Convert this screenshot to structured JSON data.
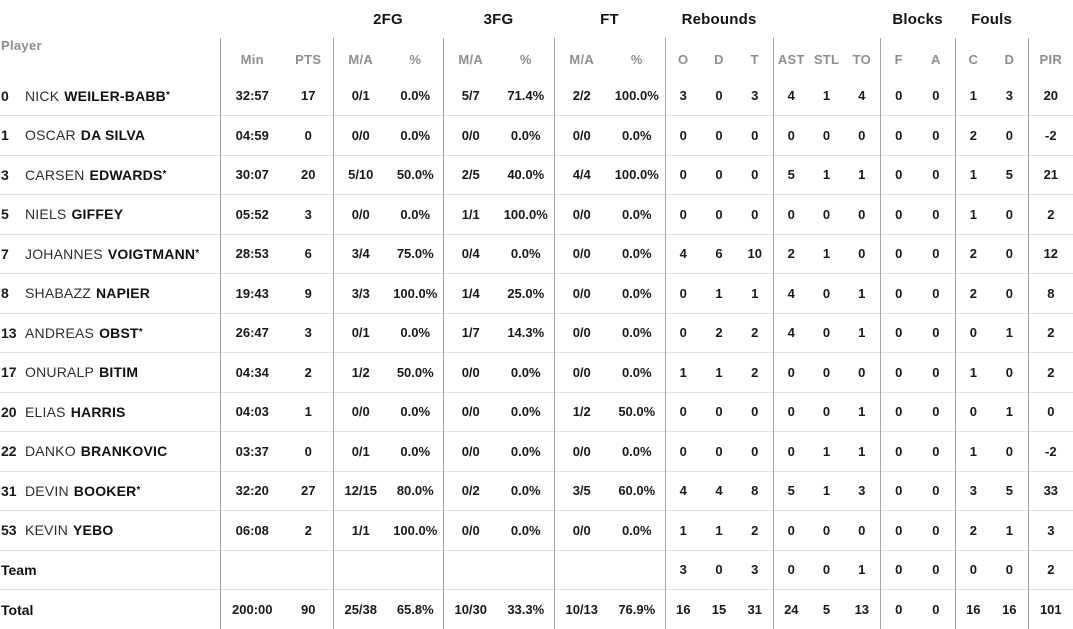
{
  "colors": {
    "background": "#ffffff",
    "text_primary": "#1a1a1a",
    "text_header_muted": "#8e8e8e",
    "vertical_rule": "#a6a6a6",
    "row_divider": "#e2e2e2"
  },
  "table": {
    "groups": {
      "fg2": "2FG",
      "fg3": "3FG",
      "ft": "FT",
      "rebounds": "Rebounds",
      "blocks": "Blocks",
      "fouls": "Fouls"
    },
    "header": {
      "player": "Player",
      "min": "Min",
      "pts": "PTS",
      "ma": "M/A",
      "pct": "%",
      "reb_o": "O",
      "reb_d": "D",
      "reb_t": "T",
      "ast": "AST",
      "stl": "STL",
      "to": "TO",
      "blk_f": "F",
      "blk_a": "A",
      "foul_c": "C",
      "foul_d": "D",
      "pir": "PIR"
    },
    "stat_keys": [
      "min",
      "pts",
      "2fg-ma",
      "2fg-pct",
      "3fg-ma",
      "3fg-pct",
      "ft-ma",
      "ft-pct",
      "reb-o",
      "reb-d",
      "reb-t",
      "ast",
      "stl",
      "to",
      "blk-f",
      "blk-a",
      "fouls-c",
      "fouls-d",
      "pir"
    ],
    "rows": [
      {
        "number": "0",
        "first": "NICK",
        "last": "WEILER-BABB",
        "starter": true,
        "stats": [
          "32:57",
          "17",
          "0/1",
          "0.0%",
          "5/7",
          "71.4%",
          "2/2",
          "100.0%",
          "3",
          "0",
          "3",
          "4",
          "1",
          "4",
          "0",
          "0",
          "1",
          "3",
          "20"
        ]
      },
      {
        "number": "1",
        "first": "OSCAR",
        "last": "DA SILVA",
        "starter": false,
        "stats": [
          "04:59",
          "0",
          "0/0",
          "0.0%",
          "0/0",
          "0.0%",
          "0/0",
          "0.0%",
          "0",
          "0",
          "0",
          "0",
          "0",
          "0",
          "0",
          "0",
          "2",
          "0",
          "-2"
        ]
      },
      {
        "number": "3",
        "first": "CARSEN",
        "last": "EDWARDS",
        "starter": true,
        "stats": [
          "30:07",
          "20",
          "5/10",
          "50.0%",
          "2/5",
          "40.0%",
          "4/4",
          "100.0%",
          "0",
          "0",
          "0",
          "5",
          "1",
          "1",
          "0",
          "0",
          "1",
          "5",
          "21"
        ]
      },
      {
        "number": "5",
        "first": "NIELS",
        "last": "GIFFEY",
        "starter": false,
        "stats": [
          "05:52",
          "3",
          "0/0",
          "0.0%",
          "1/1",
          "100.0%",
          "0/0",
          "0.0%",
          "0",
          "0",
          "0",
          "0",
          "0",
          "0",
          "0",
          "0",
          "1",
          "0",
          "2"
        ]
      },
      {
        "number": "7",
        "first": "JOHANNES",
        "last": "VOIGTMANN",
        "starter": true,
        "stats": [
          "28:53",
          "6",
          "3/4",
          "75.0%",
          "0/4",
          "0.0%",
          "0/0",
          "0.0%",
          "4",
          "6",
          "10",
          "2",
          "1",
          "0",
          "0",
          "0",
          "2",
          "0",
          "12"
        ]
      },
      {
        "number": "8",
        "first": "SHABAZZ",
        "last": "NAPIER",
        "starter": false,
        "stats": [
          "19:43",
          "9",
          "3/3",
          "100.0%",
          "1/4",
          "25.0%",
          "0/0",
          "0.0%",
          "0",
          "1",
          "1",
          "4",
          "0",
          "1",
          "0",
          "0",
          "2",
          "0",
          "8"
        ]
      },
      {
        "number": "13",
        "first": "ANDREAS",
        "last": "OBST",
        "starter": true,
        "stats": [
          "26:47",
          "3",
          "0/1",
          "0.0%",
          "1/7",
          "14.3%",
          "0/0",
          "0.0%",
          "0",
          "2",
          "2",
          "4",
          "0",
          "1",
          "0",
          "0",
          "0",
          "1",
          "2"
        ]
      },
      {
        "number": "17",
        "first": "ONURALP",
        "last": "BITIM",
        "starter": false,
        "stats": [
          "04:34",
          "2",
          "1/2",
          "50.0%",
          "0/0",
          "0.0%",
          "0/0",
          "0.0%",
          "1",
          "1",
          "2",
          "0",
          "0",
          "0",
          "0",
          "0",
          "1",
          "0",
          "2"
        ]
      },
      {
        "number": "20",
        "first": "ELIAS",
        "last": "HARRIS",
        "starter": false,
        "stats": [
          "04:03",
          "1",
          "0/0",
          "0.0%",
          "0/0",
          "0.0%",
          "1/2",
          "50.0%",
          "0",
          "0",
          "0",
          "0",
          "0",
          "1",
          "0",
          "0",
          "0",
          "1",
          "0"
        ]
      },
      {
        "number": "22",
        "first": "DANKO",
        "last": "BRANKOVIC",
        "starter": false,
        "stats": [
          "03:37",
          "0",
          "0/1",
          "0.0%",
          "0/0",
          "0.0%",
          "0/0",
          "0.0%",
          "0",
          "0",
          "0",
          "0",
          "1",
          "1",
          "0",
          "0",
          "1",
          "0",
          "-2"
        ]
      },
      {
        "number": "31",
        "first": "DEVIN",
        "last": "BOOKER",
        "starter": true,
        "stats": [
          "32:20",
          "27",
          "12/15",
          "80.0%",
          "0/2",
          "0.0%",
          "3/5",
          "60.0%",
          "4",
          "4",
          "8",
          "5",
          "1",
          "3",
          "0",
          "0",
          "3",
          "5",
          "33"
        ]
      },
      {
        "number": "53",
        "first": "KEVIN",
        "last": "YEBO",
        "starter": false,
        "stats": [
          "06:08",
          "2",
          "1/1",
          "100.0%",
          "0/0",
          "0.0%",
          "0/0",
          "0.0%",
          "1",
          "1",
          "2",
          "0",
          "0",
          "0",
          "0",
          "0",
          "2",
          "1",
          "3"
        ]
      },
      {
        "label": "Team",
        "stats": [
          "",
          "",
          "",
          "",
          "",
          "",
          "",
          "",
          "3",
          "0",
          "3",
          "0",
          "0",
          "1",
          "0",
          "0",
          "0",
          "0",
          "2"
        ]
      },
      {
        "label": "Total",
        "stats": [
          "200:00",
          "90",
          "25/38",
          "65.8%",
          "10/30",
          "33.3%",
          "10/13",
          "76.9%",
          "16",
          "15",
          "31",
          "24",
          "5",
          "13",
          "0",
          "0",
          "16",
          "16",
          "101"
        ]
      }
    ],
    "starter_mark": "*"
  }
}
